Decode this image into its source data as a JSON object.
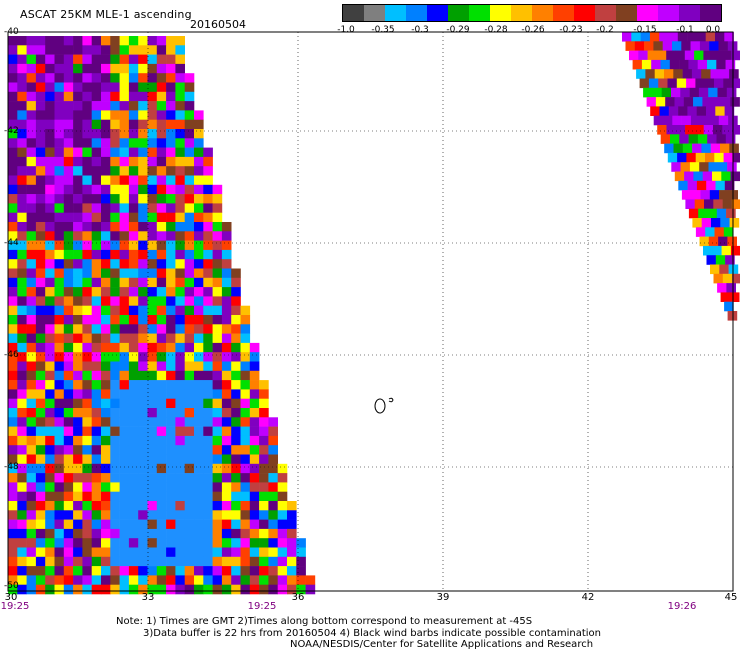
{
  "header": {
    "title": "ASCAT 25KM MLE-1 ascending",
    "date": "20160504"
  },
  "colorbar": {
    "colors": [
      "#404040",
      "#7f7f7f",
      "#00bfff",
      "#0080ff",
      "#0000ff",
      "#00a000",
      "#00e000",
      "#ffff00",
      "#ffc000",
      "#ff8000",
      "#ff4000",
      "#ff0000",
      "#c04040",
      "#804020",
      "#ff00ff",
      "#c000ff",
      "#8000c0",
      "#600080"
    ],
    "labels": [
      "-1.0",
      "-0.35",
      "-0.3",
      "-0.29",
      "-0.28",
      "-0.26",
      "-0.23",
      "-0.2",
      "-0.15",
      "-0.1",
      "0.0"
    ]
  },
  "map": {
    "y_labels": [
      "-40",
      "-42",
      "-44",
      "-46",
      "-48",
      "-50"
    ],
    "x_labels": [
      "30",
      "33",
      "36",
      "39",
      "42",
      "45"
    ],
    "time_labels": [
      "19:25",
      "19:25",
      "19:26"
    ],
    "island_label": "0"
  },
  "notes": {
    "line1": "Note: 1) Times are GMT 2)Times along bottom correspond to measurement at -45S",
    "line2": "3)Data buffer is 22 hrs from 20160504 4) Black wind barbs indicate possible contamination",
    "line3": "NOAA/NESDIS/Center for Satellite Applications and Research"
  }
}
